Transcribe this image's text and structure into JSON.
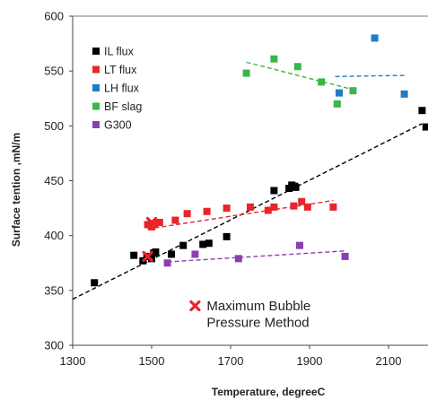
{
  "chart_data": {
    "type": "scatter",
    "xlabel": "Temperature, degreeC",
    "ylabel": "Surface tention ,mN/m",
    "xlim": [
      1300,
      2200
    ],
    "ylim": [
      300,
      600
    ],
    "xticks": [
      "1300",
      "1500",
      "1700",
      "1900",
      "2100"
    ],
    "yticks": [
      "300",
      "350",
      "400",
      "450",
      "500",
      "550",
      "600"
    ],
    "grid": false,
    "legend_position": "top-left",
    "series": [
      {
        "name": "IL flux",
        "color": "#000000",
        "marker": "square",
        "points": [
          [
            1355,
            357
          ],
          [
            1455,
            382
          ],
          [
            1478,
            377
          ],
          [
            1488,
            381
          ],
          [
            1500,
            379
          ],
          [
            1505,
            384
          ],
          [
            1510,
            385
          ],
          [
            1550,
            383
          ],
          [
            1580,
            391
          ],
          [
            1630,
            392
          ],
          [
            1645,
            393
          ],
          [
            1690,
            399
          ],
          [
            1810,
            441
          ],
          [
            1848,
            443
          ],
          [
            1855,
            446
          ],
          [
            1862,
            445
          ],
          [
            1865,
            444
          ],
          [
            2185,
            514
          ],
          [
            2195,
            499
          ]
        ],
        "trend": {
          "style": "dashed",
          "from": [
            1300,
            342
          ],
          "to": [
            2185,
            502
          ]
        }
      },
      {
        "name": "LT flux",
        "color": "#e8252b",
        "marker": "square",
        "points": [
          [
            1490,
            410
          ],
          [
            1500,
            408
          ],
          [
            1508,
            411
          ],
          [
            1520,
            412
          ],
          [
            1560,
            414
          ],
          [
            1590,
            420
          ],
          [
            1640,
            422
          ],
          [
            1690,
            425
          ],
          [
            1750,
            426
          ],
          [
            1795,
            423
          ],
          [
            1810,
            426
          ],
          [
            1860,
            427
          ],
          [
            1880,
            431
          ],
          [
            1895,
            426
          ],
          [
            1960,
            426
          ]
        ],
        "trend": {
          "style": "dashed",
          "from": [
            1490,
            406
          ],
          "to": [
            1960,
            432
          ]
        }
      },
      {
        "name": "LH flux",
        "color": "#1f7bc4",
        "marker": "square",
        "points": [
          [
            1975,
            530
          ],
          [
            2065,
            580
          ],
          [
            2140,
            529
          ]
        ],
        "trend": {
          "style": "dashed",
          "from": [
            1965,
            545
          ],
          "to": [
            2145,
            546
          ]
        }
      },
      {
        "name": "BF slag",
        "color": "#3cb54a",
        "marker": "square",
        "points": [
          [
            1740,
            548
          ],
          [
            1810,
            561
          ],
          [
            1870,
            554
          ],
          [
            1930,
            540
          ],
          [
            1970,
            520
          ],
          [
            2010,
            532
          ]
        ],
        "trend": {
          "style": "dashed",
          "from": [
            1740,
            558
          ],
          "to": [
            2000,
            534
          ]
        }
      },
      {
        "name": "G300",
        "color": "#8a3fb5",
        "marker": "square",
        "points": [
          [
            1540,
            375
          ],
          [
            1610,
            383
          ],
          [
            1720,
            379
          ],
          [
            1875,
            391
          ],
          [
            1990,
            381
          ]
        ],
        "trend": {
          "style": "dashed",
          "from": [
            1540,
            376
          ],
          "to": [
            1990,
            386
          ]
        }
      }
    ],
    "annotations": [
      {
        "marker": "x",
        "color": "#e8252b",
        "highlight_points": [
          [
            1490,
            381
          ],
          [
            1500,
            412
          ]
        ],
        "legend_point": [
          1610,
          336
        ],
        "lines": [
          "Maximum Bubble",
          "Pressure Method"
        ]
      }
    ]
  }
}
